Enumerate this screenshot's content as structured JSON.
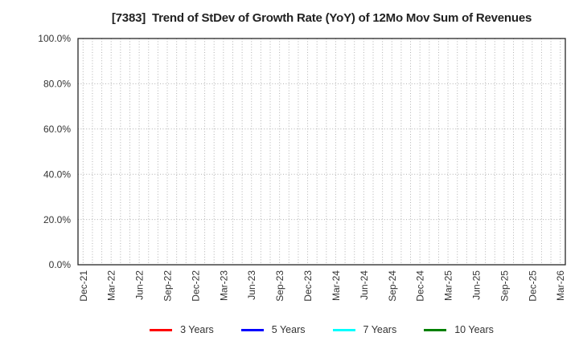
{
  "title": "[7383]  Trend of StDev of Growth Rate (YoY) of 12Mo Mov Sum of Revenues",
  "chart_data": {
    "type": "line",
    "title": "[7383]  Trend of StDev of Growth Rate (YoY) of 12Mo Mov Sum of Revenues",
    "xlabel": "",
    "ylabel": "",
    "ylim": [
      0,
      100
    ],
    "y_tick_values": [
      0,
      20,
      40,
      60,
      80,
      100
    ],
    "y_tick_labels": [
      "0.0%",
      "20.0%",
      "40.0%",
      "60.0%",
      "80.0%",
      "100.0%"
    ],
    "x_tick_labels": [
      "Dec-21",
      "Mar-22",
      "Jun-22",
      "Sep-22",
      "Dec-22",
      "Mar-23",
      "Jun-23",
      "Sep-23",
      "Dec-23",
      "Mar-24",
      "Jun-24",
      "Sep-24",
      "Dec-24",
      "Mar-25",
      "Jun-25",
      "Sep-25",
      "Dec-25",
      "Mar-26"
    ],
    "x_label_step_months": 3,
    "x_total_months": 51,
    "grid": true,
    "grid_style": "dotted",
    "legend_position": "bottom",
    "series": [
      {
        "name": "3 Years",
        "color": "#ff0000",
        "values": []
      },
      {
        "name": "5 Years",
        "color": "#0000ff",
        "values": []
      },
      {
        "name": "7 Years",
        "color": "#00ffff",
        "values": []
      },
      {
        "name": "10 Years",
        "color": "#008000",
        "values": []
      }
    ]
  },
  "colors": {
    "background": "#ffffff",
    "plot_border": "#262626",
    "grid": "#b0b0b0",
    "tick_text": "#333333",
    "title_text": "#222222",
    "legend_text": "#333333"
  }
}
